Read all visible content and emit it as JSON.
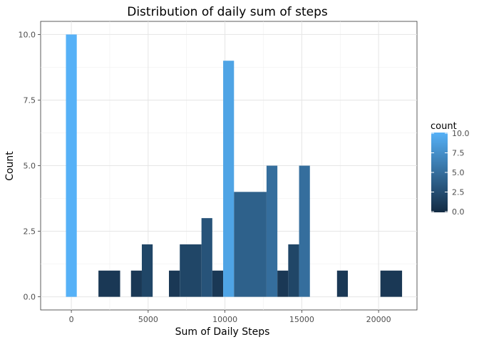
{
  "chart_data": {
    "type": "bar",
    "title": "Distribution of daily sum of steps",
    "xlabel": "Sum of Daily Steps",
    "ylabel": "Count",
    "xlim": [
      -2000,
      22500
    ],
    "ylim": [
      -0.5,
      10.5
    ],
    "xticks": [
      0,
      5000,
      10000,
      15000,
      20000
    ],
    "xtick_labels": [
      "0",
      "5000",
      "10000",
      "15000",
      "20000"
    ],
    "yticks": [
      0,
      2.5,
      5,
      7.5,
      10
    ],
    "ytick_labels": [
      "0.0",
      "2.5",
      "5.0",
      "7.5",
      "10.0"
    ],
    "bins": [
      {
        "x0": -353,
        "x1": 353,
        "count": 10
      },
      {
        "x0": 1764,
        "x1": 3176,
        "count": 1
      },
      {
        "x0": 3882,
        "x1": 4588,
        "count": 1
      },
      {
        "x0": 4588,
        "x1": 5294,
        "count": 2
      },
      {
        "x0": 6353,
        "x1": 7059,
        "count": 1
      },
      {
        "x0": 7059,
        "x1": 8471,
        "count": 2
      },
      {
        "x0": 8471,
        "x1": 9176,
        "count": 3
      },
      {
        "x0": 9176,
        "x1": 9882,
        "count": 1
      },
      {
        "x0": 9882,
        "x1": 10588,
        "count": 9
      },
      {
        "x0": 10588,
        "x1": 12706,
        "count": 4
      },
      {
        "x0": 12706,
        "x1": 13412,
        "count": 5
      },
      {
        "x0": 13412,
        "x1": 14118,
        "count": 1
      },
      {
        "x0": 14118,
        "x1": 14824,
        "count": 2
      },
      {
        "x0": 14824,
        "x1": 15529,
        "count": 5
      },
      {
        "x0": 17294,
        "x1": 18000,
        "count": 1
      },
      {
        "x0": 20118,
        "x1": 21529,
        "count": 1
      }
    ],
    "grid": true,
    "legend": {
      "title": "count",
      "position": "right",
      "range": [
        0,
        10
      ],
      "labels": [
        "10.0",
        "7.5",
        "5.0",
        "2.5",
        "0.0"
      ],
      "color_low": "#132b43",
      "color_high": "#56b1f7"
    }
  }
}
